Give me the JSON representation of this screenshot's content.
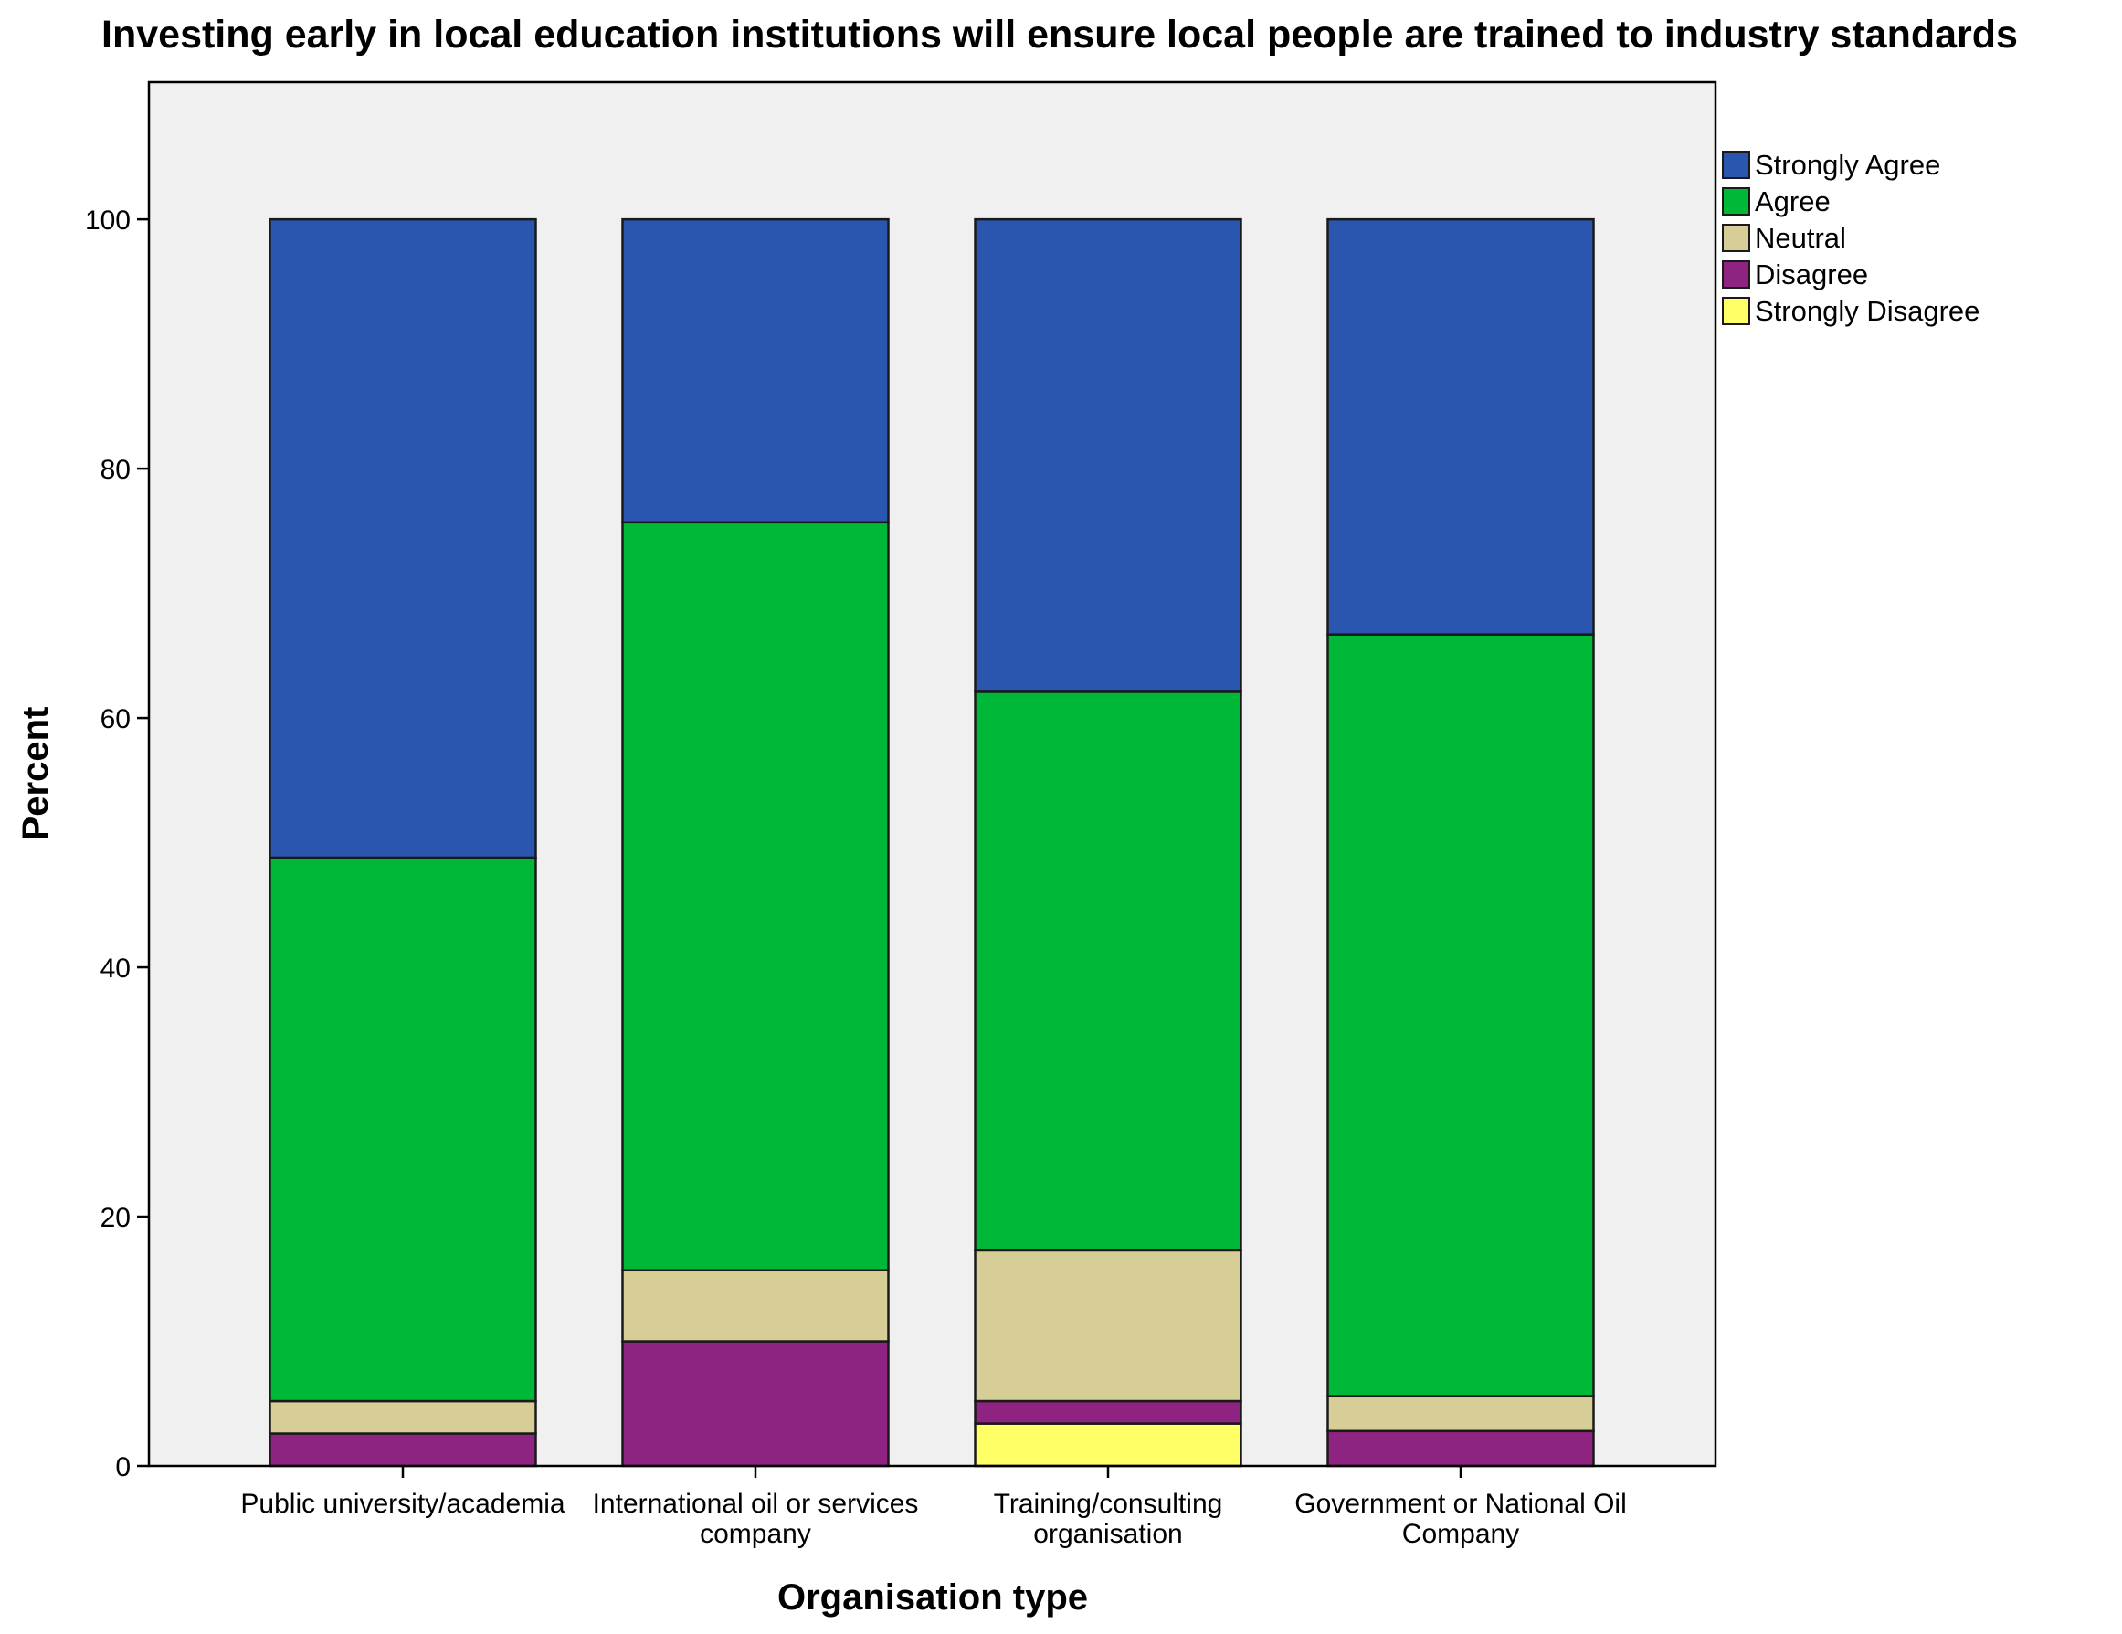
{
  "chart_data": {
    "type": "bar",
    "stacked": true,
    "title": "Investing early in local education institutions will ensure local people are trained to industry standards",
    "xlabel": "Organisation type",
    "ylabel": "Percent",
    "ylim": [
      0,
      111
    ],
    "yticks": [
      0,
      20,
      40,
      60,
      80,
      100
    ],
    "grid": false,
    "legend_position": "right",
    "categories": [
      [
        "Public university/academia"
      ],
      [
        "International oil or services",
        "company"
      ],
      [
        "Training/consulting",
        "organisation"
      ],
      [
        "Government or National Oil",
        "Company"
      ]
    ],
    "series": [
      {
        "name": "Strongly Disagree",
        "color": "#FFFF66",
        "values": [
          0,
          0,
          3.4,
          0
        ]
      },
      {
        "name": "Disagree",
        "color": "#8F2381",
        "values": [
          2.6,
          10.0,
          1.8,
          2.8
        ]
      },
      {
        "name": "Neutral",
        "color": "#D6CE96",
        "values": [
          2.6,
          5.7,
          12.1,
          2.8
        ]
      },
      {
        "name": "Agree",
        "color": "#00B837",
        "values": [
          43.6,
          60.0,
          44.8,
          61.1
        ]
      },
      {
        "name": "Strongly Agree",
        "color": "#2B56B0",
        "values": [
          51.2,
          24.3,
          37.9,
          33.3
        ]
      }
    ],
    "legend_order": [
      "Strongly Agree",
      "Agree",
      "Neutral",
      "Disagree",
      "Strongly Disagree"
    ],
    "plot_background": "#F0F0F0"
  }
}
